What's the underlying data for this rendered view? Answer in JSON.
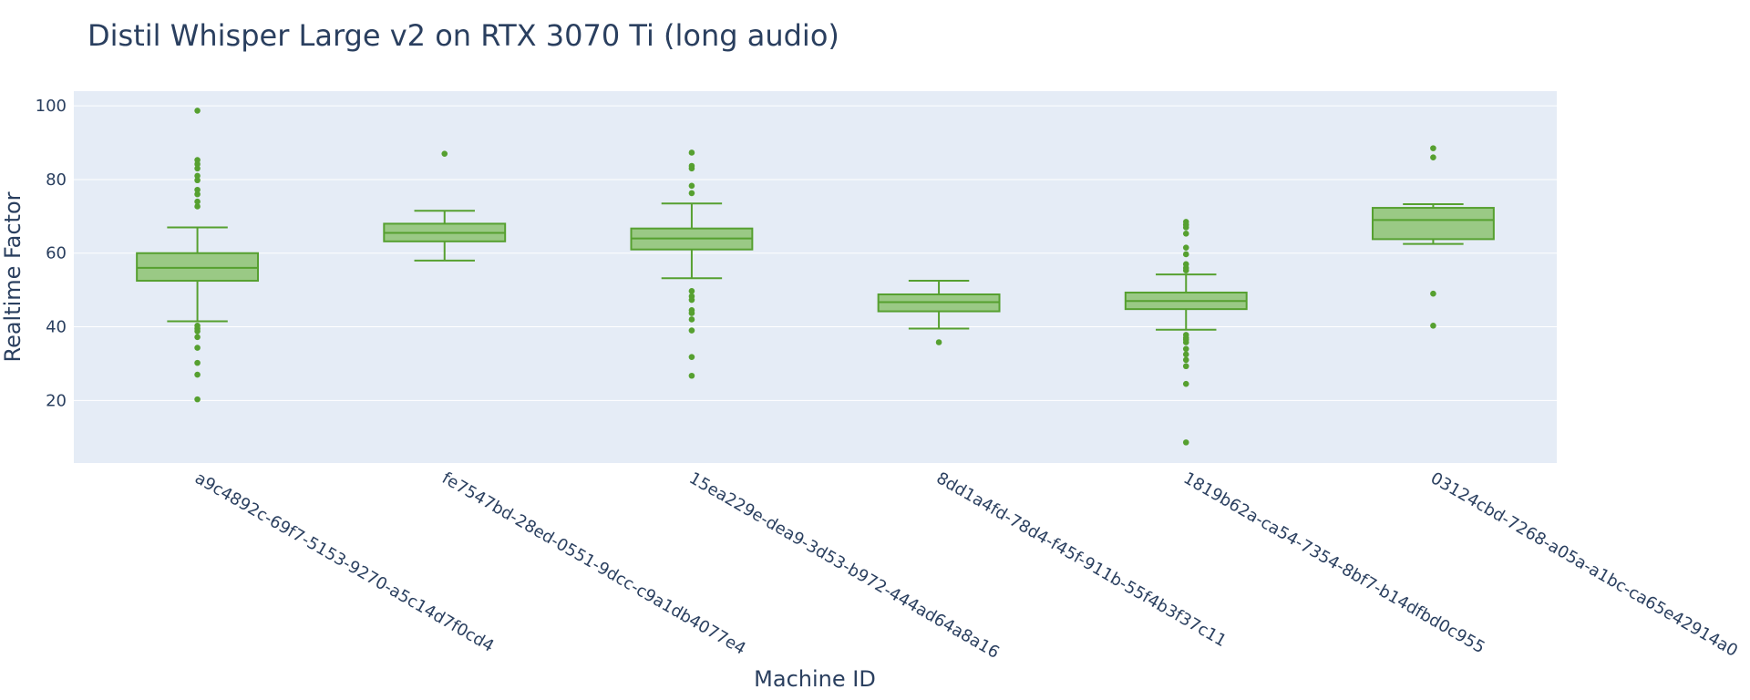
{
  "chart_data": {
    "type": "box",
    "title": "Distil Whisper Large v2 on RTX 3070 Ti (long audio)",
    "xlabel": "Machine ID",
    "ylabel": "Realtime Factor",
    "yticks": [
      20,
      40,
      60,
      80,
      100
    ],
    "ylim": [
      3,
      104
    ],
    "grid": true,
    "legend": "none",
    "colors": {
      "plot_bg": "#e5ecf6",
      "grid": "#ffffff",
      "box_fill": "#9ac985",
      "box_line": "#56a030",
      "text": "#2a3f5f"
    },
    "categories": [
      "a9c4892c-69f7-5153-9270-a5c14d7f0cd4",
      "fe7547bd-28ed-0551-9dcc-c9a1db4077e4",
      "15ea229e-dea9-3d53-b972-444ad64a8a16",
      "8dd1a4fd-78d4-f45f-911b-55f4b3f37c11",
      "1819b62a-ca54-7354-8bf7-b14dfbd0c955",
      "03124cbd-7268-a05a-a1bc-ca65e42914a0"
    ],
    "boxes": [
      {
        "q1": 52.5,
        "median": 56.0,
        "q3": 60.0,
        "whisker_low": 41.5,
        "whisker_high": 67.0,
        "outliers": [
          98.7,
          85.3,
          84.2,
          83.0,
          81.0,
          79.8,
          77.2,
          76.0,
          74.0,
          72.7,
          40.3,
          39.5,
          38.8,
          37.2,
          34.3,
          30.2,
          27.0,
          20.3
        ]
      },
      {
        "q1": 63.2,
        "median": 65.5,
        "q3": 68.0,
        "whisker_low": 58.0,
        "whisker_high": 71.5,
        "outliers": [
          87.0
        ]
      },
      {
        "q1": 61.0,
        "median": 64.0,
        "q3": 66.7,
        "whisker_low": 53.2,
        "whisker_high": 73.5,
        "outliers": [
          87.3,
          83.7,
          83.0,
          78.3,
          76.3,
          49.7,
          48.3,
          47.3,
          44.5,
          43.7,
          42.0,
          39.0,
          31.8,
          26.7
        ]
      },
      {
        "q1": 44.2,
        "median": 46.7,
        "q3": 48.8,
        "whisker_low": 39.5,
        "whisker_high": 52.5,
        "outliers": [
          35.8
        ]
      },
      {
        "q1": 44.8,
        "median": 47.0,
        "q3": 49.3,
        "whisker_low": 39.2,
        "whisker_high": 54.2,
        "outliers": [
          68.5,
          67.7,
          67.0,
          65.3,
          61.5,
          59.7,
          57.0,
          56.0,
          55.3,
          37.8,
          37.0,
          36.5,
          35.8,
          34.0,
          32.5,
          31.0,
          29.3,
          24.5,
          8.6
        ]
      },
      {
        "q1": 63.8,
        "median": 69.0,
        "q3": 72.3,
        "whisker_low": 62.5,
        "whisker_high": 73.3,
        "outliers": [
          88.5,
          86.0,
          49.0,
          40.3
        ]
      }
    ]
  }
}
